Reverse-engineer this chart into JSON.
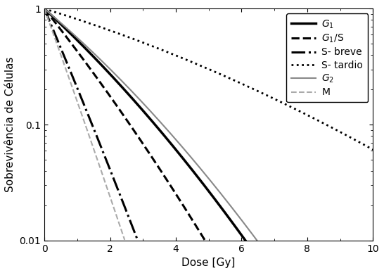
{
  "title": "",
  "xlabel": "Dose [Gy]",
  "ylabel": "Sobrevivência de Células",
  "xlim": [
    0,
    10
  ],
  "ylim": [
    0.01,
    1.0
  ],
  "curves": [
    {
      "label": "$G_1$",
      "alpha": 0.6,
      "beta": 0.025,
      "color": "#000000",
      "linestyle": "solid",
      "linewidth": 2.5
    },
    {
      "label": "$G_1$/S",
      "alpha": 0.82,
      "beta": 0.025,
      "color": "#000000",
      "linestyle": "dashed",
      "linewidth": 2.2
    },
    {
      "label": "S- breve",
      "alpha": 1.55,
      "beta": 0.025,
      "color": "#000000",
      "linestyle": "dashdot",
      "linewidth": 2.2
    },
    {
      "label": "S- tardio",
      "alpha": 0.2,
      "beta": 0.008,
      "color": "#000000",
      "linestyle": "dotted",
      "linewidth": 2.0
    },
    {
      "label": "$G_2$",
      "alpha": 0.55,
      "beta": 0.025,
      "color": "#888888",
      "linestyle": "solid",
      "linewidth": 1.5
    },
    {
      "label": "M",
      "alpha": 1.82,
      "beta": 0.025,
      "color": "#aaaaaa",
      "linestyle": "dashed",
      "linewidth": 1.5
    }
  ],
  "legend_loc": "upper right",
  "background_color": "#ffffff",
  "tick_label_fontsize": 10,
  "axis_label_fontsize": 11,
  "legend_fontsize": 10
}
